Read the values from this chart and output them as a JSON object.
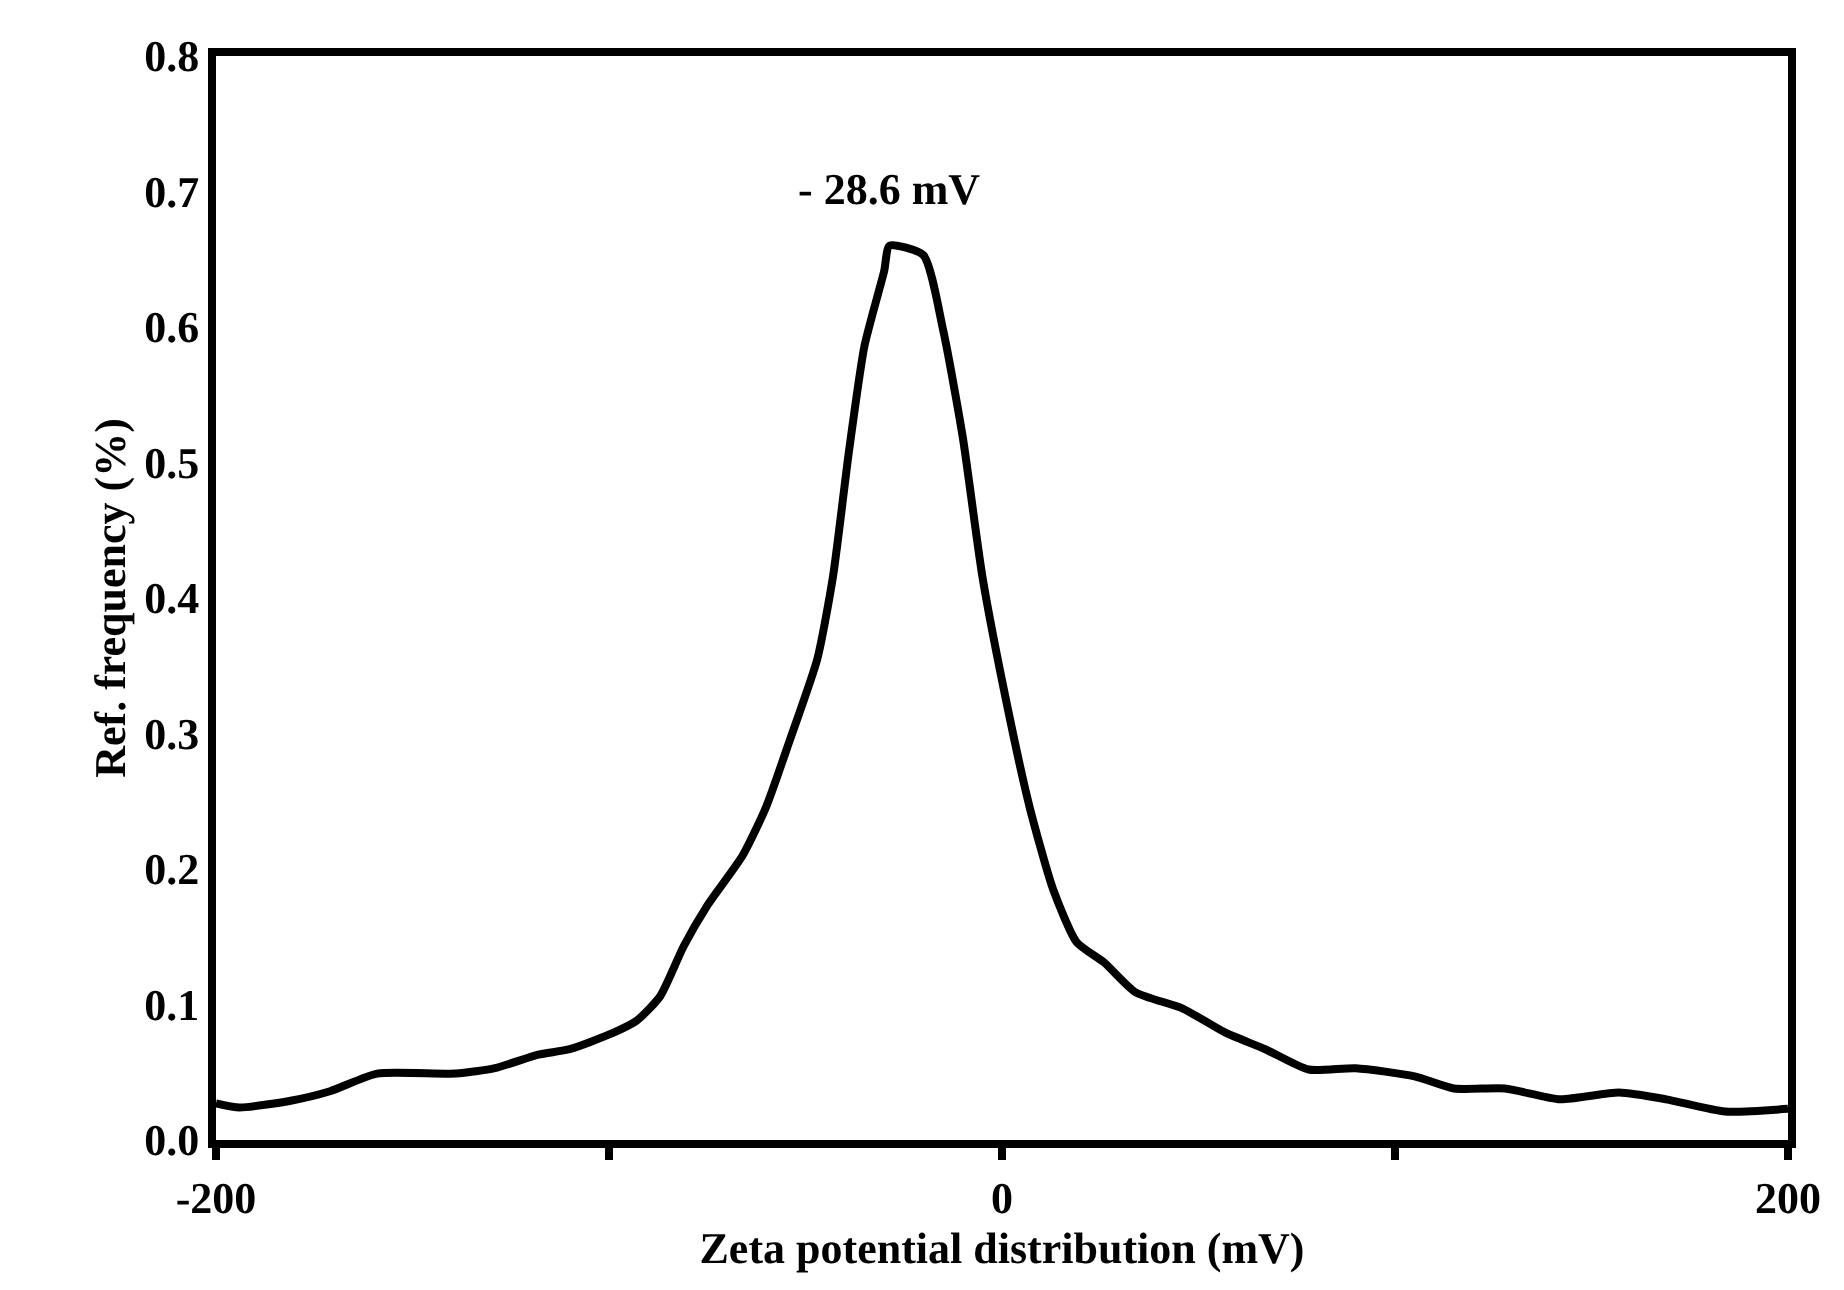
{
  "chart_data": {
    "type": "line",
    "xlabel": "Zeta potential distribution (mV)",
    "ylabel": "Ref. frequency (%)",
    "xlim": [
      -200,
      200
    ],
    "xticks": [
      -200,
      {
        "value": -100,
        "label": null
      },
      0,
      {
        "value": 100,
        "label": null
      },
      200
    ],
    "ylim": [
      0,
      0.8
    ],
    "yticks": [
      {
        "value": 0,
        "label": "0.0"
      },
      0.1,
      0.2,
      0.3,
      0.4,
      0.5,
      0.6,
      0.7,
      0.8
    ],
    "marker": "none",
    "line_style": "solid",
    "annotations": [
      {
        "text": "- 28.6 mV",
        "x": -28.6,
        "y": 0.66
      }
    ],
    "series": [
      {
        "color": "#000000",
        "x": [
          -200,
          -194,
          -181,
          -171,
          -159,
          -139,
          -129,
          -118,
          -110,
          -99,
          -93,
          -87,
          -81,
          -75,
          -66,
          -60,
          -54,
          -47,
          -43,
          -39,
          -35,
          -30,
          -28.6,
          -20,
          -15,
          -10,
          -5,
          1,
          7,
          13,
          19,
          26,
          34,
          46,
          57,
          67,
          78,
          90,
          105,
          115,
          128,
          142,
          157,
          169,
          184,
          200
        ],
        "values": [
          0.027,
          0.024,
          0.029,
          0.036,
          0.049,
          0.049,
          0.053,
          0.063,
          0.067,
          0.079,
          0.088,
          0.106,
          0.143,
          0.173,
          0.21,
          0.246,
          0.295,
          0.355,
          0.416,
          0.507,
          0.586,
          0.641,
          0.66,
          0.653,
          0.598,
          0.519,
          0.416,
          0.325,
          0.246,
          0.185,
          0.146,
          0.131,
          0.109,
          0.097,
          0.079,
          0.067,
          0.052,
          0.053,
          0.047,
          0.038,
          0.038,
          0.03,
          0.035,
          0.03,
          0.021,
          0.023
        ]
      }
    ]
  }
}
